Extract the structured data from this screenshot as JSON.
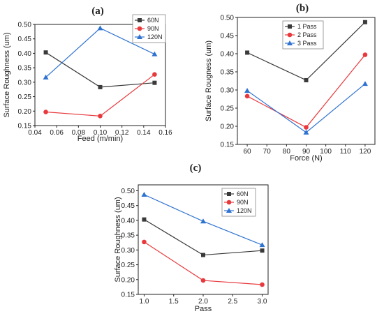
{
  "chart_data": [
    {
      "panel": "(a)",
      "type": "line",
      "xlabel": "Feed (m/min)",
      "ylabel": "Surface Roughness (um)",
      "xlim": [
        0.04,
        0.16
      ],
      "ylim": [
        0.15,
        0.5
      ],
      "xticks": [
        0.04,
        0.06,
        0.08,
        0.1,
        0.12,
        0.14,
        0.16
      ],
      "xtick_labels": [
        "0.04",
        "0.06",
        "0.08",
        "0.10",
        "0.12",
        "0.14",
        "0.16"
      ],
      "yticks": [
        0.15,
        0.2,
        0.25,
        0.3,
        0.35,
        0.4,
        0.45,
        0.5
      ],
      "ytick_labels": [
        "0.15",
        "0.20",
        "0.25",
        "0.30",
        "0.35",
        "0.40",
        "0.45",
        "0.50"
      ],
      "x": [
        0.05,
        0.1,
        0.15
      ],
      "legend_position": "top-right",
      "series": [
        {
          "name": "60N",
          "color": "#3a3a3a",
          "marker": "square",
          "values": [
            0.403,
            0.283,
            0.298
          ]
        },
        {
          "name": "90N",
          "color": "#e8393d",
          "marker": "circle",
          "values": [
            0.197,
            0.183,
            0.327
          ]
        },
        {
          "name": "120N",
          "color": "#2f73d0",
          "marker": "triangle",
          "values": [
            0.317,
            0.487,
            0.397
          ]
        }
      ]
    },
    {
      "panel": "(b)",
      "type": "line",
      "xlabel": "Force (N)",
      "ylabel": "Surface Rougness (um)",
      "xlim": [
        55,
        125
      ],
      "ylim": [
        0.15,
        0.5
      ],
      "xticks": [
        60,
        70,
        80,
        90,
        100,
        110,
        120
      ],
      "xtick_labels": [
        "60",
        "70",
        "80",
        "90",
        "100",
        "110",
        "120"
      ],
      "yticks": [
        0.15,
        0.2,
        0.25,
        0.3,
        0.35,
        0.4,
        0.45,
        0.5
      ],
      "ytick_labels": [
        "0.15",
        "0.20",
        "0.25",
        "0.30",
        "0.35",
        "0.40",
        "0.45",
        "0.50"
      ],
      "x": [
        60,
        90,
        120
      ],
      "legend_position": "top-left",
      "series": [
        {
          "name": "1 Pass",
          "color": "#3a3a3a",
          "marker": "square",
          "values": [
            0.403,
            0.327,
            0.487
          ]
        },
        {
          "name": "2 Pass",
          "color": "#e8393d",
          "marker": "circle",
          "values": [
            0.283,
            0.197,
            0.397
          ]
        },
        {
          "name": "3 Pass",
          "color": "#2f73d0",
          "marker": "triangle",
          "values": [
            0.298,
            0.183,
            0.317
          ]
        }
      ]
    },
    {
      "panel": "(c)",
      "type": "line",
      "xlabel": "Pass",
      "ylabel": "Surface Roughness (um)",
      "xlim": [
        0.9,
        3.1
      ],
      "ylim": [
        0.15,
        0.52
      ],
      "xticks": [
        1.0,
        1.5,
        2.0,
        2.5,
        3.0
      ],
      "xtick_labels": [
        "1.0",
        "1.5",
        "2.0",
        "2.5",
        "3.0"
      ],
      "yticks": [
        0.15,
        0.2,
        0.25,
        0.3,
        0.35,
        0.4,
        0.45,
        0.5
      ],
      "ytick_labels": [
        "0.15",
        "0.20",
        "0.25",
        "0.30",
        "0.35",
        "0.40",
        "0.45",
        "0.50"
      ],
      "x": [
        1.0,
        2.0,
        3.0
      ],
      "legend_position": "top-right",
      "series": [
        {
          "name": "60N",
          "color": "#3a3a3a",
          "marker": "square",
          "values": [
            0.403,
            0.283,
            0.298
          ]
        },
        {
          "name": "90N",
          "color": "#e8393d",
          "marker": "circle",
          "values": [
            0.327,
            0.197,
            0.183
          ]
        },
        {
          "name": "120N",
          "color": "#2f73d0",
          "marker": "triangle",
          "values": [
            0.487,
            0.397,
            0.317
          ]
        }
      ]
    }
  ]
}
